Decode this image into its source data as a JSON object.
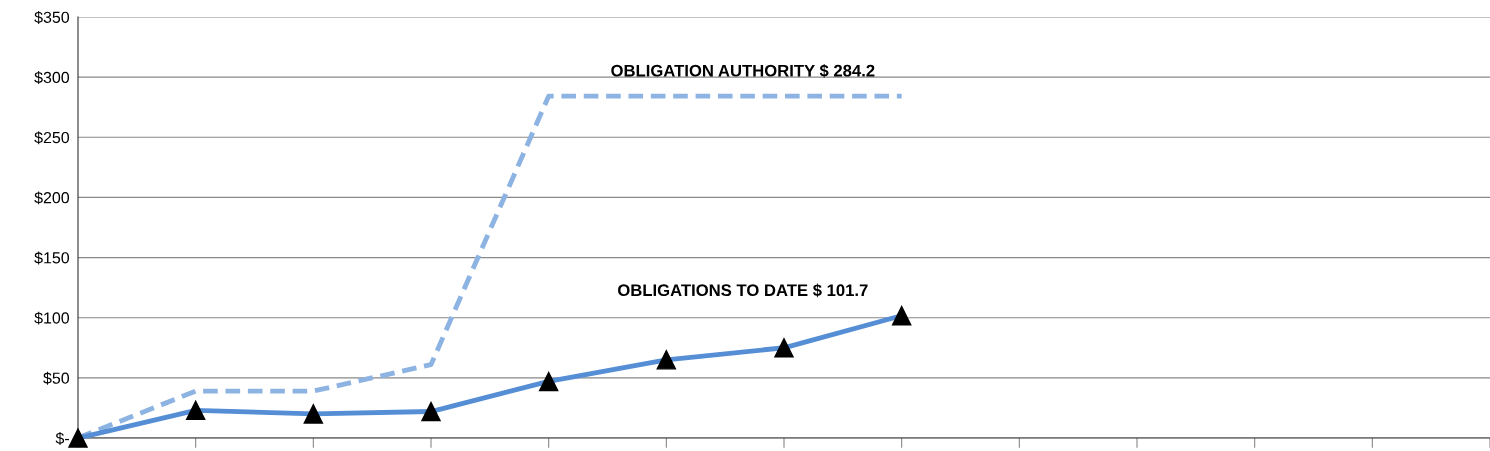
{
  "chart_data": {
    "type": "line",
    "categories": [
      null,
      null,
      null,
      null,
      null,
      null,
      null,
      null,
      null,
      null,
      null,
      null,
      null
    ],
    "series": [
      {
        "name": "OBLIGATION AUTHORITY $ 284.2",
        "color": "#8db3e2",
        "line_style": "dashed",
        "marker": "none",
        "values": [
          0,
          39,
          39,
          61,
          284.2,
          284.2,
          284.2,
          284.2,
          null,
          null,
          null,
          null,
          null
        ]
      },
      {
        "name": "OBLIGATIONS TO DATE $ 101.7",
        "color": "#558ed5",
        "line_style": "solid",
        "marker": "triangle",
        "values": [
          0,
          23,
          20,
          22,
          47,
          65,
          75,
          101.7,
          null,
          null,
          null,
          null,
          null
        ]
      }
    ],
    "ylim": [
      0,
      350
    ],
    "yticks": [
      {
        "value": 0,
        "label": "$-"
      },
      {
        "value": 50,
        "label": "$50"
      },
      {
        "value": 100,
        "label": "$100"
      },
      {
        "value": 150,
        "label": "$150"
      },
      {
        "value": 200,
        "label": "$200"
      },
      {
        "value": 250,
        "label": "$250"
      },
      {
        "value": 300,
        "label": "$300"
      },
      {
        "value": 350,
        "label": "$350"
      }
    ],
    "grid": "y",
    "legend": false
  }
}
